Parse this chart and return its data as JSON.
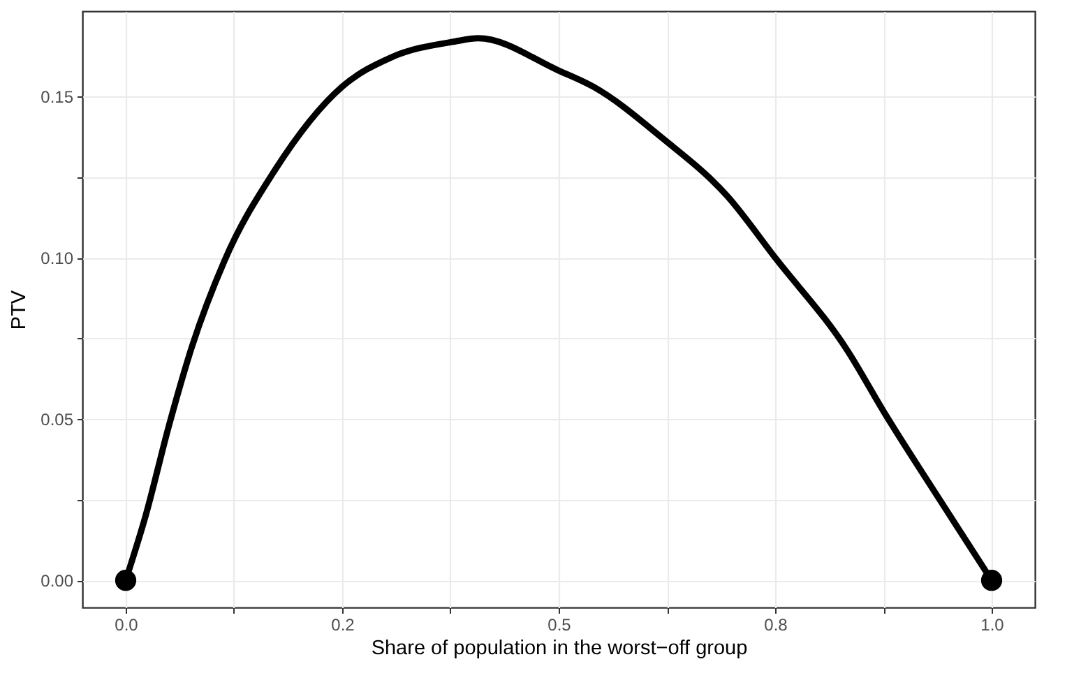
{
  "chart_data": {
    "type": "line",
    "xlabel": "Share of population in the worst−off group",
    "ylabel": "PTV",
    "series": [
      {
        "color": "#000000",
        "x": [
          0,
          0.023,
          0.05,
          0.076,
          0.114,
          0.172,
          0.25,
          0.306,
          0.38,
          0.407,
          0.5,
          0.54,
          0.62,
          0.695,
          0.75,
          0.834,
          0.876,
          0.94,
          1
        ],
        "values": [
          0,
          0.02,
          0.048,
          0.072,
          0.099,
          0.127,
          0.153,
          0.162,
          0.167,
          0.168,
          0.158,
          0.153,
          0.137,
          0.119,
          0.1,
          0.071,
          0.052,
          0.025,
          0
        ]
      },
      {
        "type": "scatter",
        "color": "#000000",
        "marker": "circle",
        "x": [
          0,
          1
        ],
        "values": [
          0,
          0
        ]
      }
    ],
    "xlim": [
      -0.05,
      1.05
    ],
    "ylim": [
      -0.0084,
      0.1764
    ],
    "xticks": [
      {
        "value": 0,
        "label": "0.0"
      },
      {
        "value": 0.125,
        "label": null
      },
      {
        "value": 0.25,
        "label": "0.2"
      },
      {
        "value": 0.375,
        "label": null
      },
      {
        "value": 0.5,
        "label": "0.5"
      },
      {
        "value": 0.625,
        "label": null
      },
      {
        "value": 0.75,
        "label": "0.8"
      },
      {
        "value": 0.875,
        "label": null
      },
      {
        "value": 1,
        "label": "1.0"
      }
    ],
    "yticks": [
      {
        "value": 0,
        "label": "0.00"
      },
      {
        "value": 0.025,
        "label": null
      },
      {
        "value": 0.05,
        "label": "0.05"
      },
      {
        "value": 0.075,
        "label": null
      },
      {
        "value": 0.1,
        "label": "0.10"
      },
      {
        "value": 0.125,
        "label": null
      },
      {
        "value": 0.15,
        "label": "0.15"
      }
    ],
    "grid": true
  }
}
